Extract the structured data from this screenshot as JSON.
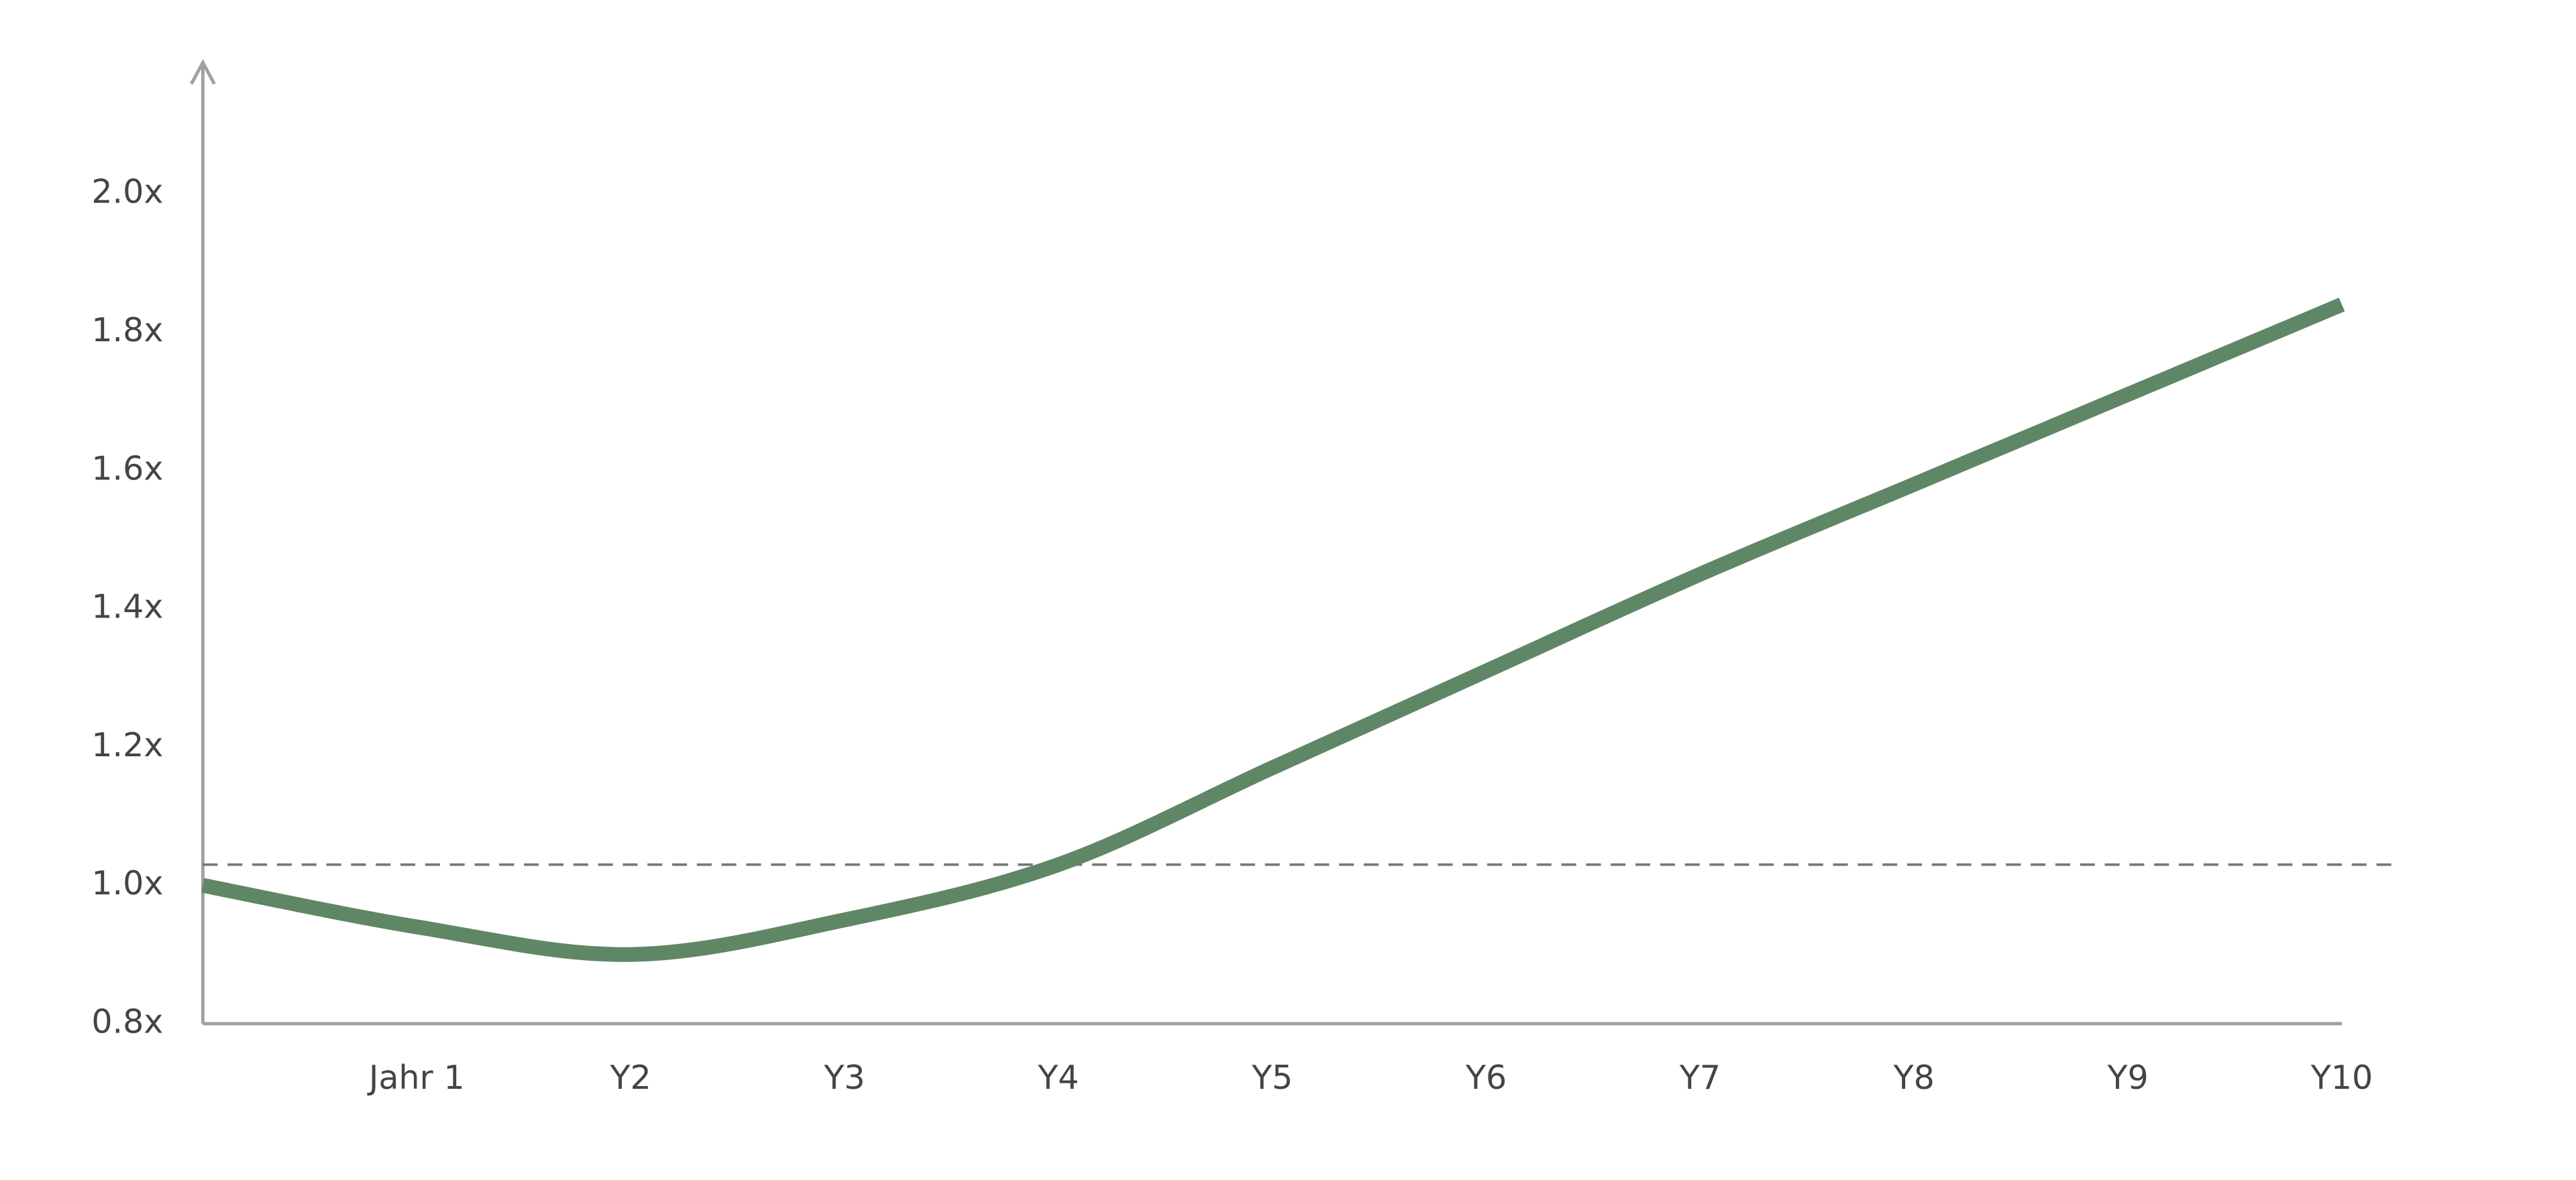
{
  "chart_data": {
    "type": "line",
    "categories": [
      null,
      "Jahr 1",
      "Y2",
      "Y3",
      "Y4",
      "Y5",
      "Y6",
      "Y7",
      "Y8",
      "Y9",
      "Y10"
    ],
    "series": [
      {
        "color": "#5f8766",
        "values": [
          1.0,
          0.94,
          0.9,
          0.95,
          1.03,
          1.17,
          1.31,
          1.45,
          1.58,
          1.71,
          1.84
        ]
      }
    ],
    "reference_line": 1.03,
    "ylim": [
      0.8,
      2.19
    ],
    "yticks": [
      {
        "value": 0.8,
        "label": "0.8x"
      },
      {
        "value": 1.0,
        "label": "1.0x"
      },
      {
        "value": 1.2,
        "label": "1.2x"
      },
      {
        "value": 1.4,
        "label": "1.4x"
      },
      {
        "value": 1.6,
        "label": "1.6x"
      },
      {
        "value": 1.8,
        "label": "1.8x"
      },
      {
        "value": 2.0,
        "label": "2.0x"
      }
    ]
  }
}
